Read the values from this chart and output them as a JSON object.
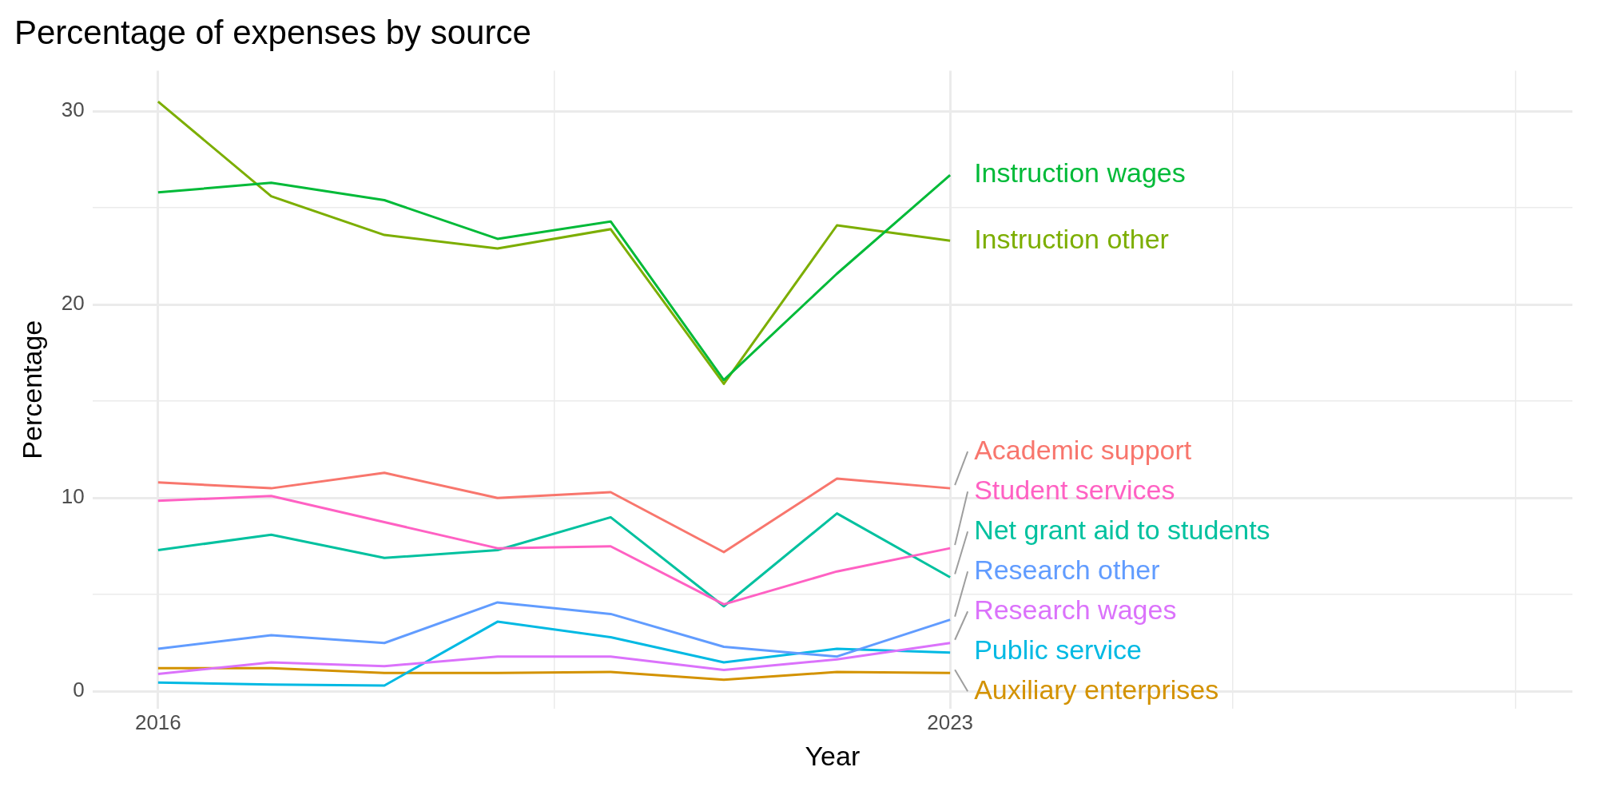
{
  "chart_data": {
    "type": "line",
    "title": "Percentage of expenses by source",
    "xlabel": "Year",
    "ylabel": "Percentage",
    "x": [
      2016,
      2017,
      2018,
      2019,
      2020,
      2021,
      2022,
      2023
    ],
    "series": [
      {
        "name": "Instruction wages",
        "color": "#00ba38",
        "values": [
          25.8,
          26.3,
          25.4,
          23.4,
          24.3,
          16.1,
          21.6,
          26.7
        ]
      },
      {
        "name": "Instruction other",
        "color": "#7cae00",
        "values": [
          30.5,
          25.6,
          23.6,
          22.9,
          23.9,
          15.9,
          24.1,
          23.3
        ]
      },
      {
        "name": "Academic support",
        "color": "#f8766d",
        "values": [
          10.8,
          10.5,
          11.3,
          10.0,
          10.3,
          7.2,
          11.0,
          10.5
        ]
      },
      {
        "name": "Student services",
        "color": "#ff61c3",
        "values": [
          9.85,
          10.1,
          8.75,
          7.4,
          7.5,
          4.5,
          6.2,
          7.4
        ]
      },
      {
        "name": "Net grant aid to students",
        "color": "#00c19f",
        "values": [
          7.3,
          8.1,
          6.9,
          7.3,
          9.0,
          4.4,
          9.2,
          5.9
        ]
      },
      {
        "name": "Research other",
        "color": "#619cff",
        "values": [
          2.2,
          2.9,
          2.5,
          4.6,
          4.0,
          2.3,
          1.8,
          3.7
        ]
      },
      {
        "name": "Research wages",
        "color": "#db72fb",
        "values": [
          0.9,
          1.5,
          1.3,
          1.8,
          1.8,
          1.1,
          1.65,
          2.5
        ]
      },
      {
        "name": "Public service",
        "color": "#00b9e3",
        "values": [
          0.45,
          0.35,
          0.3,
          3.6,
          2.8,
          1.5,
          2.2,
          2.0
        ]
      },
      {
        "name": "Auxiliary enterprises",
        "color": "#d39200",
        "values": [
          1.2,
          1.2,
          0.95,
          0.95,
          1.0,
          0.6,
          1.0,
          0.95
        ]
      }
    ],
    "xlim": [
      2015.42,
      2028.5
    ],
    "xticks": [
      2016,
      {
        "value": 2019.5,
        "label": null
      },
      2023,
      {
        "value": 2025.5,
        "label": null
      },
      {
        "value": 2028,
        "label": null
      }
    ],
    "ylim": [
      -0.9,
      32.1
    ],
    "yticks": [
      0,
      {
        "value": 5,
        "label": null
      },
      10,
      {
        "value": 15,
        "label": null
      },
      20,
      {
        "value": 25,
        "label": null
      },
      30
    ],
    "grid": true,
    "legend": false,
    "marker": "none",
    "line_style": "solid"
  }
}
